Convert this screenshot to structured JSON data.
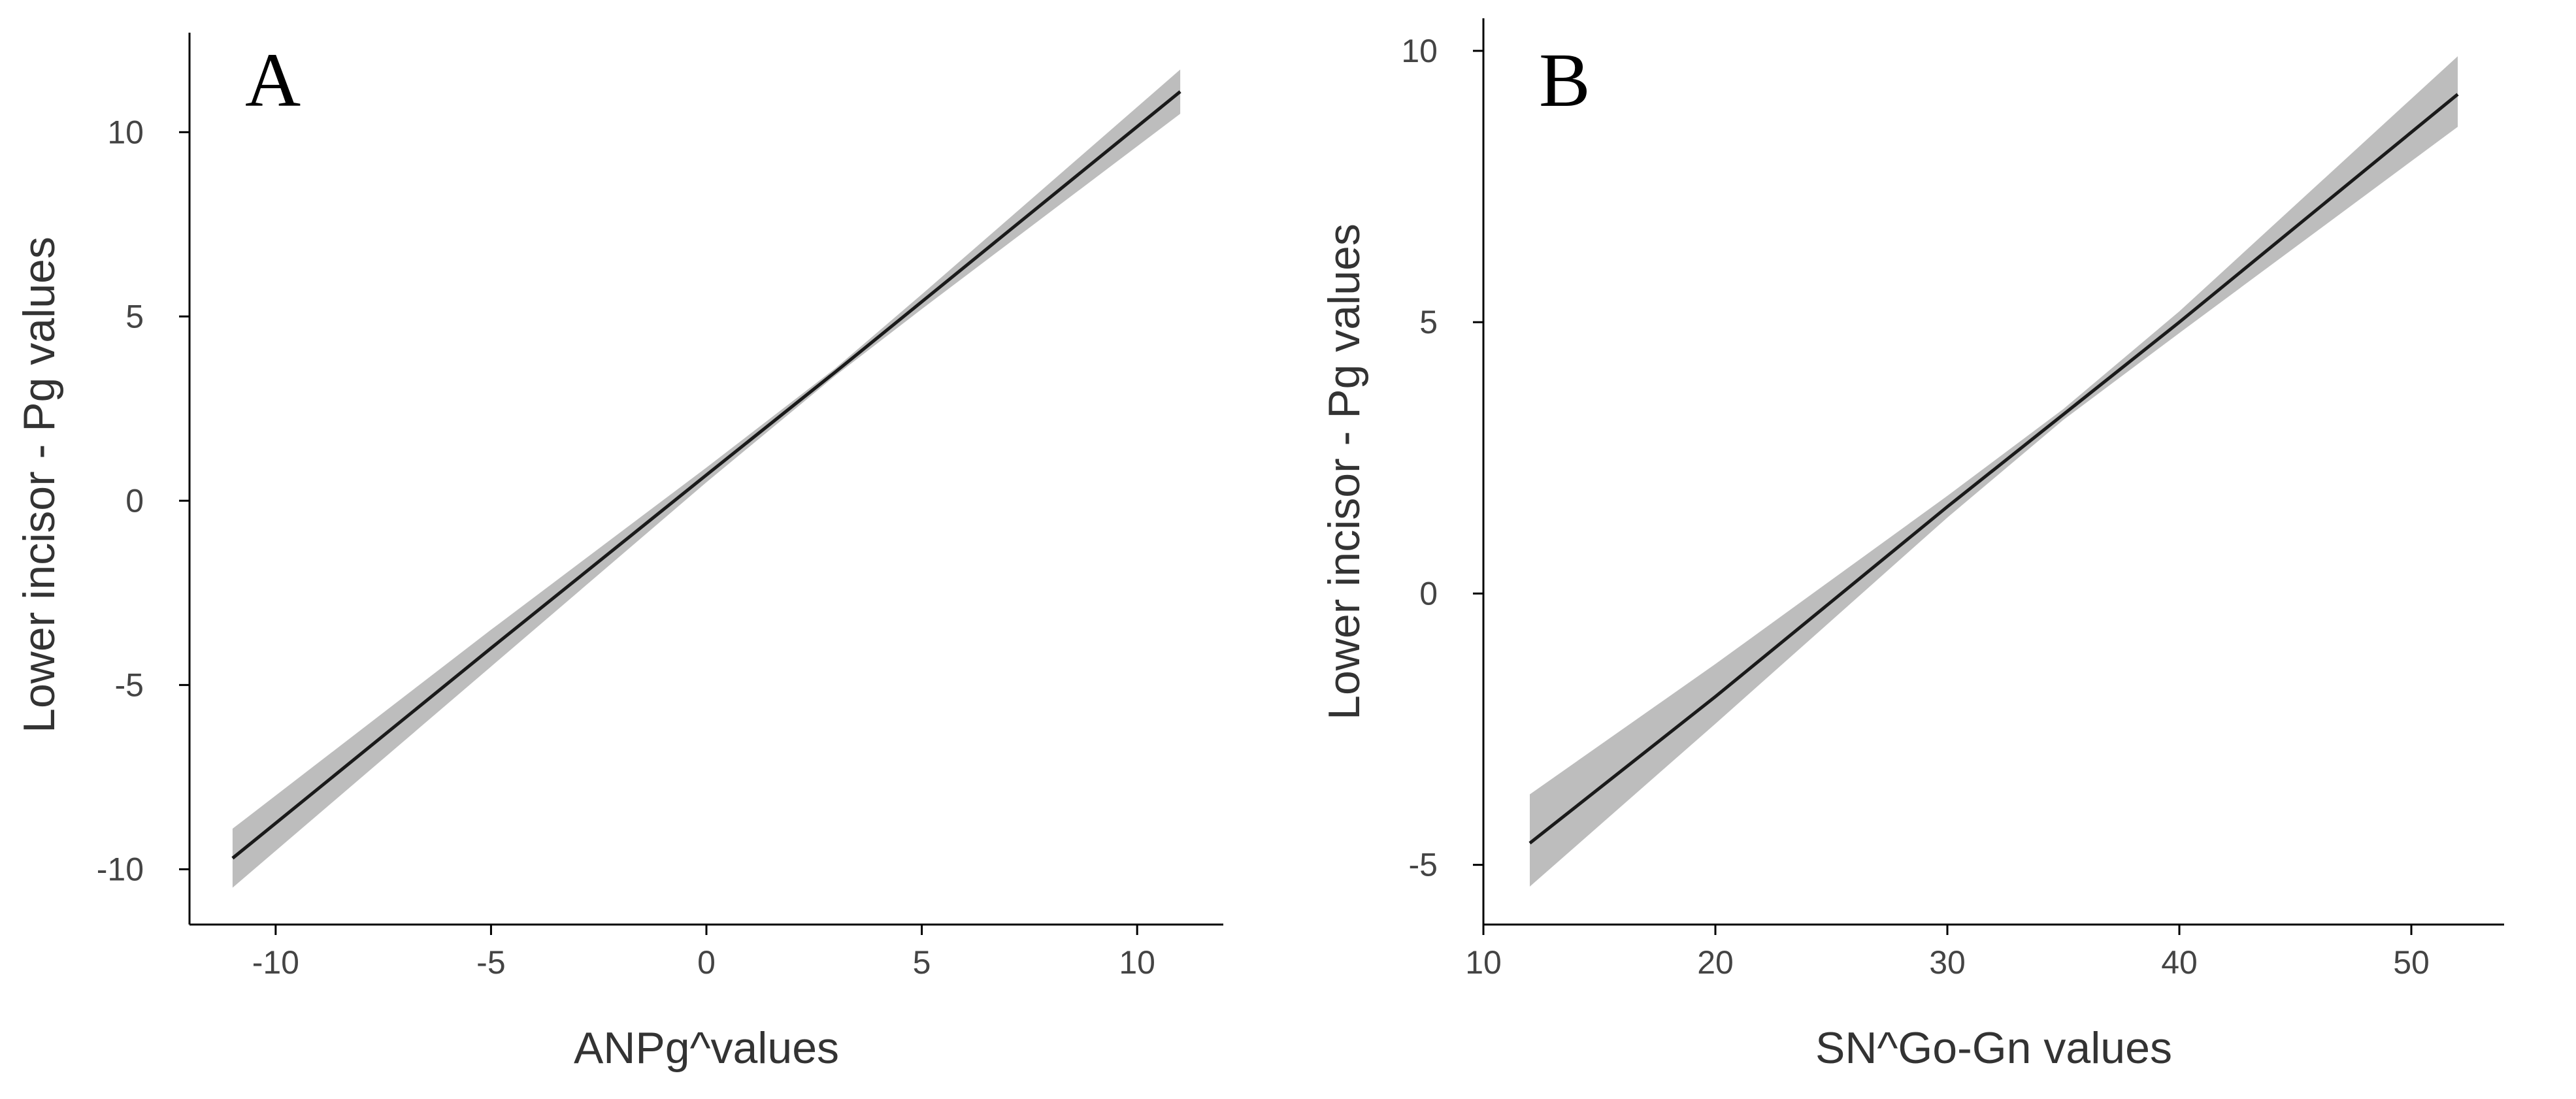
{
  "chart_data": [
    {
      "type": "line",
      "panel_label": "A",
      "xlabel": "ANPg^values",
      "ylabel": "Lower incisor - Pg values",
      "xlim": [
        -12,
        12
      ],
      "ylim": [
        -11.5,
        12.7
      ],
      "x_ticks": [
        -10,
        -5,
        0,
        5,
        10
      ],
      "x_tick_labels": [
        "-10",
        "-5",
        "0",
        "5",
        "10"
      ],
      "y_ticks": [
        -10,
        -5,
        0,
        5,
        10
      ],
      "y_tick_labels": [
        "-10",
        "-5",
        "0",
        "5",
        "10"
      ],
      "grid": false,
      "legend": "none",
      "series": [
        {
          "x": [
            -11,
            -5,
            0,
            3,
            5,
            11
          ],
          "y": [
            -9.7,
            -4.0,
            0.7,
            3.5,
            5.4,
            11.1
          ],
          "ci_lower": [
            -10.5,
            -4.5,
            0.5,
            3.4,
            5.2,
            10.5
          ],
          "ci_upper": [
            -8.9,
            -3.5,
            0.9,
            3.6,
            5.6,
            11.7
          ]
        }
      ]
    },
    {
      "type": "line",
      "panel_label": "B",
      "xlabel": "SN^Go-Gn values",
      "ylabel": "Lower incisor - Pg values",
      "xlim": [
        10,
        54
      ],
      "ylim": [
        -6.1,
        10.6
      ],
      "x_ticks": [
        10,
        20,
        30,
        40,
        50
      ],
      "x_tick_labels": [
        "10",
        "20",
        "30",
        "40",
        "50"
      ],
      "y_ticks": [
        -5,
        0,
        5,
        10
      ],
      "y_tick_labels": [
        "-5",
        "0",
        "5",
        "10"
      ],
      "grid": false,
      "legend": "none",
      "series": [
        {
          "x": [
            12,
            20,
            30,
            35,
            40,
            52
          ],
          "y": [
            -4.6,
            -1.9,
            1.6,
            3.3,
            5.0,
            9.2
          ],
          "ci_lower": [
            -5.4,
            -2.4,
            1.4,
            3.2,
            4.8,
            8.6
          ],
          "ci_upper": [
            -3.7,
            -1.3,
            1.8,
            3.4,
            5.2,
            9.9
          ]
        }
      ]
    }
  ]
}
